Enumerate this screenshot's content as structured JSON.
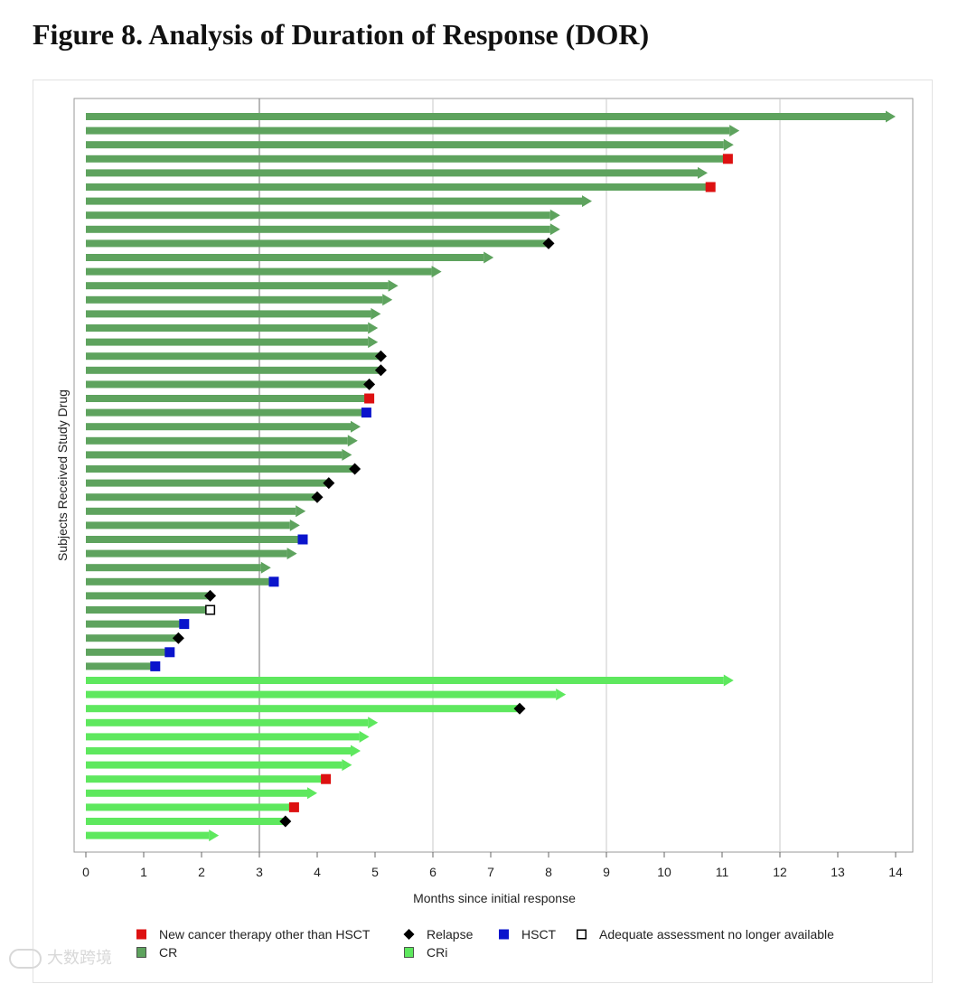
{
  "title": "Figure 8. Analysis of Duration of Response (DOR)",
  "watermark": "大数跨境",
  "colors": {
    "CR": "#5ea35e",
    "CRi": "#5ee85e",
    "new_therapy": "#dd1111",
    "relapse": "#000000",
    "hsct": "#0a14cc",
    "adequate": "#ffffff",
    "grid": "#c8c8c8",
    "refline": "#888888"
  },
  "chart_data": {
    "type": "swimmer",
    "title": "Figure 8. Analysis of Duration of Response (DOR)",
    "xlabel": "Months since initial response",
    "ylabel": "Subjects Received Study Drug",
    "xlim": [
      0,
      14
    ],
    "xticks": [
      "0",
      "1",
      "2",
      "3",
      "4",
      "5",
      "6",
      "7",
      "8",
      "9",
      "10",
      "11",
      "12",
      "13",
      "14"
    ],
    "grid_x": [
      6,
      9,
      12
    ],
    "reference_line_x": 3,
    "legend_items": [
      {
        "key": "new_therapy",
        "label": "New cancer therapy other than HSCT",
        "shape": "square"
      },
      {
        "key": "relapse",
        "label": "Relapse",
        "shape": "diamond"
      },
      {
        "key": "hsct",
        "label": "HSCT",
        "shape": "square"
      },
      {
        "key": "adequate",
        "label": "Adequate assessment no longer available",
        "shape": "open-square"
      },
      {
        "key": "CR",
        "label": "CR",
        "shape": "bar-swatch"
      },
      {
        "key": "CRi",
        "label": "CRi",
        "shape": "bar-swatch"
      }
    ],
    "subjects": [
      {
        "response": "CR",
        "duration": 14.0,
        "ongoing": true
      },
      {
        "response": "CR",
        "duration": 11.3,
        "ongoing": true
      },
      {
        "response": "CR",
        "duration": 11.2,
        "ongoing": true
      },
      {
        "response": "CR",
        "duration": 11.1,
        "ongoing": false,
        "event": "new_therapy"
      },
      {
        "response": "CR",
        "duration": 10.75,
        "ongoing": true
      },
      {
        "response": "CR",
        "duration": 10.8,
        "ongoing": false,
        "event": "new_therapy"
      },
      {
        "response": "CR",
        "duration": 8.75,
        "ongoing": true
      },
      {
        "response": "CR",
        "duration": 8.2,
        "ongoing": true
      },
      {
        "response": "CR",
        "duration": 8.2,
        "ongoing": true
      },
      {
        "response": "CR",
        "duration": 8.0,
        "ongoing": false,
        "event": "relapse"
      },
      {
        "response": "CR",
        "duration": 7.05,
        "ongoing": true
      },
      {
        "response": "CR",
        "duration": 6.15,
        "ongoing": true
      },
      {
        "response": "CR",
        "duration": 5.4,
        "ongoing": true
      },
      {
        "response": "CR",
        "duration": 5.3,
        "ongoing": true
      },
      {
        "response": "CR",
        "duration": 5.1,
        "ongoing": true
      },
      {
        "response": "CR",
        "duration": 5.05,
        "ongoing": true
      },
      {
        "response": "CR",
        "duration": 5.05,
        "ongoing": true
      },
      {
        "response": "CR",
        "duration": 5.1,
        "ongoing": false,
        "event": "relapse"
      },
      {
        "response": "CR",
        "duration": 5.1,
        "ongoing": false,
        "event": "relapse"
      },
      {
        "response": "CR",
        "duration": 4.9,
        "ongoing": false,
        "event": "relapse"
      },
      {
        "response": "CR",
        "duration": 4.9,
        "ongoing": false,
        "event": "new_therapy"
      },
      {
        "response": "CR",
        "duration": 4.85,
        "ongoing": false,
        "event": "hsct"
      },
      {
        "response": "CR",
        "duration": 4.75,
        "ongoing": true
      },
      {
        "response": "CR",
        "duration": 4.7,
        "ongoing": true
      },
      {
        "response": "CR",
        "duration": 4.6,
        "ongoing": true
      },
      {
        "response": "CR",
        "duration": 4.65,
        "ongoing": false,
        "event": "relapse"
      },
      {
        "response": "CR",
        "duration": 4.2,
        "ongoing": false,
        "event": "relapse"
      },
      {
        "response": "CR",
        "duration": 4.0,
        "ongoing": false,
        "event": "relapse"
      },
      {
        "response": "CR",
        "duration": 3.8,
        "ongoing": true
      },
      {
        "response": "CR",
        "duration": 3.7,
        "ongoing": true
      },
      {
        "response": "CR",
        "duration": 3.75,
        "ongoing": false,
        "event": "hsct"
      },
      {
        "response": "CR",
        "duration": 3.65,
        "ongoing": true
      },
      {
        "response": "CR",
        "duration": 3.2,
        "ongoing": true
      },
      {
        "response": "CR",
        "duration": 3.25,
        "ongoing": false,
        "event": "hsct"
      },
      {
        "response": "CR",
        "duration": 2.15,
        "ongoing": false,
        "event": "relapse"
      },
      {
        "response": "CR",
        "duration": 2.15,
        "ongoing": false,
        "event": "adequate"
      },
      {
        "response": "CR",
        "duration": 1.7,
        "ongoing": false,
        "event": "hsct"
      },
      {
        "response": "CR",
        "duration": 1.6,
        "ongoing": false,
        "event": "relapse"
      },
      {
        "response": "CR",
        "duration": 1.45,
        "ongoing": false,
        "event": "hsct"
      },
      {
        "response": "CR",
        "duration": 1.2,
        "ongoing": false,
        "event": "hsct"
      },
      {
        "response": "CRi",
        "duration": 11.2,
        "ongoing": true
      },
      {
        "response": "CRi",
        "duration": 8.3,
        "ongoing": true
      },
      {
        "response": "CRi",
        "duration": 7.5,
        "ongoing": false,
        "event": "relapse"
      },
      {
        "response": "CRi",
        "duration": 5.05,
        "ongoing": true
      },
      {
        "response": "CRi",
        "duration": 4.9,
        "ongoing": true
      },
      {
        "response": "CRi",
        "duration": 4.75,
        "ongoing": true
      },
      {
        "response": "CRi",
        "duration": 4.6,
        "ongoing": true
      },
      {
        "response": "CRi",
        "duration": 4.15,
        "ongoing": false,
        "event": "new_therapy"
      },
      {
        "response": "CRi",
        "duration": 4.0,
        "ongoing": true
      },
      {
        "response": "CRi",
        "duration": 3.6,
        "ongoing": false,
        "event": "new_therapy"
      },
      {
        "response": "CRi",
        "duration": 3.45,
        "ongoing": false,
        "event": "relapse"
      },
      {
        "response": "CRi",
        "duration": 2.3,
        "ongoing": true
      }
    ]
  }
}
